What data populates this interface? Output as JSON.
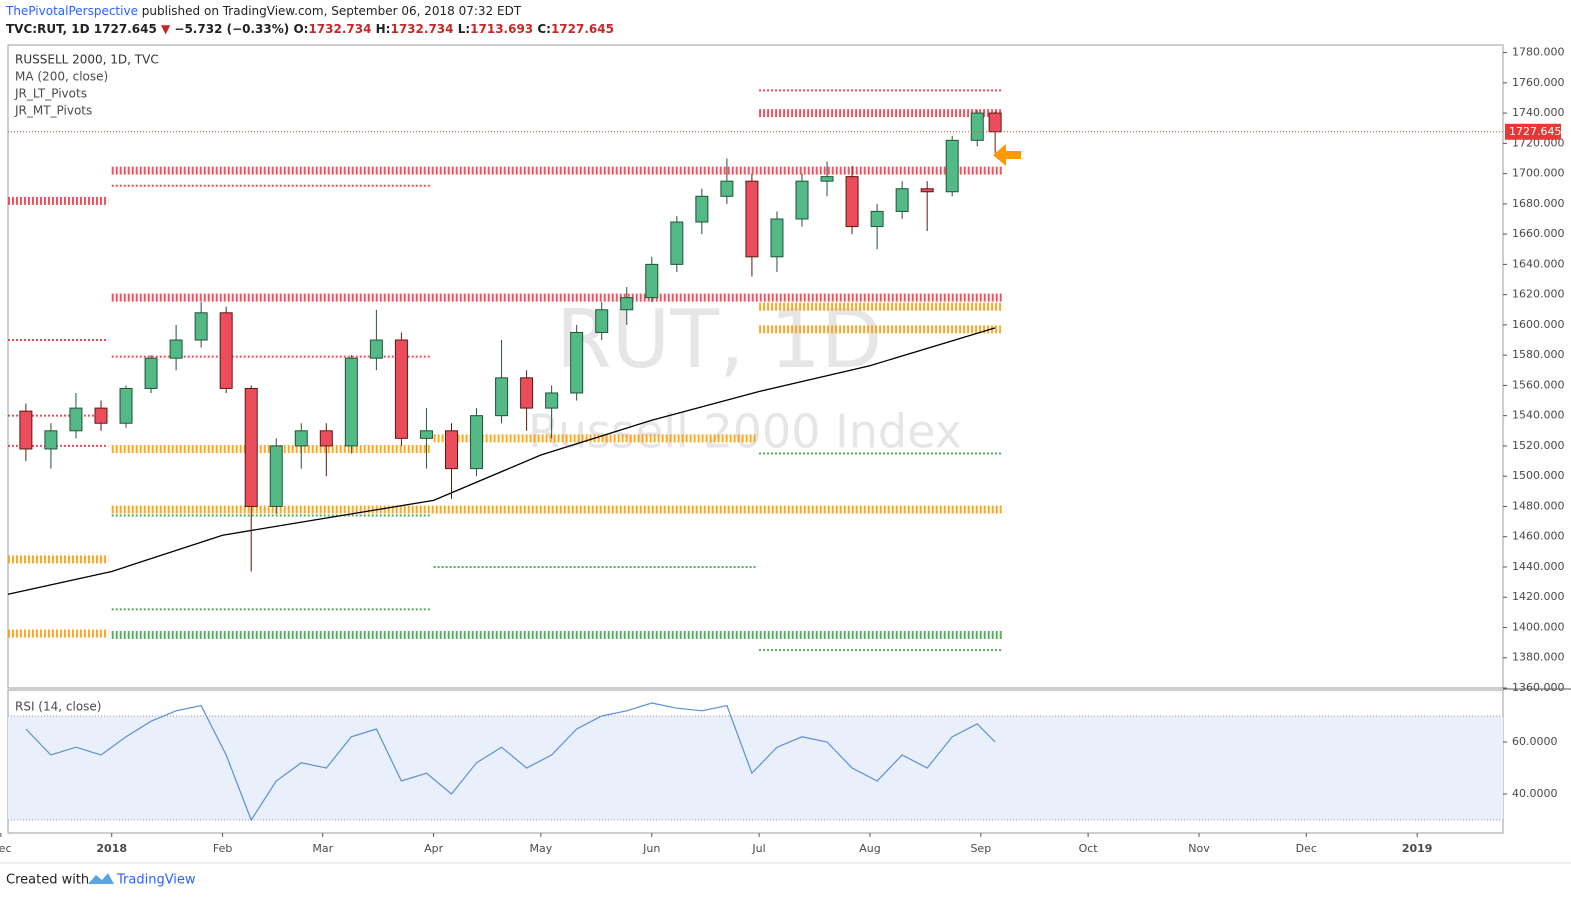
{
  "header": {
    "author": "ThePivotalPerspective",
    "published": "published on TradingView.com, September 06, 2018 07:32 EDT",
    "quote": {
      "symbol": "TVC:RUT, 1D",
      "last": 1727.645,
      "arrow": "▼",
      "change": "−5.732 (−0.33%)",
      "o_label": "O:",
      "open": 1732.734,
      "h_label": "H:",
      "high": 1732.734,
      "l_label": "L:",
      "low": 1713.693,
      "c_label": "C:",
      "close": 1727.645
    }
  },
  "footer": {
    "created": "Created with",
    "brand": "TradingView"
  },
  "chart_data": [
    {
      "type": "candlestick",
      "title": "RUSSELL 2000, 1D, TVC",
      "legend": [
        "MA (200, close)",
        "JR_LT_Pivots",
        "JR_MT_Pivots"
      ],
      "watermark": [
        "RUT, 1D",
        "Russell 2000 Index"
      ],
      "xlim": [
        "2017-12-03",
        "2019-01-25"
      ],
      "xticks": [
        {
          "value": "2017-12-01",
          "label": "Dec"
        },
        {
          "value": "2018-01-01",
          "label": "2018"
        },
        {
          "value": "2018-02-01",
          "label": "Feb"
        },
        {
          "value": "2018-03-01",
          "label": "Mar"
        },
        {
          "value": "2018-04-01",
          "label": "Apr"
        },
        {
          "value": "2018-05-01",
          "label": "May"
        },
        {
          "value": "2018-06-01",
          "label": "Jun"
        },
        {
          "value": "2018-07-01",
          "label": "Jul"
        },
        {
          "value": "2018-08-01",
          "label": "Aug"
        },
        {
          "value": "2018-09-01",
          "label": "Sep"
        },
        {
          "value": "2018-10-01",
          "label": "Oct"
        },
        {
          "value": "2018-11-01",
          "label": "Nov"
        },
        {
          "value": "2018-12-01",
          "label": "Dec"
        },
        {
          "value": "2019-01-01",
          "label": "2019"
        }
      ],
      "ylim": [
        1360,
        1785
      ],
      "yticks": [
        {
          "value": 1360,
          "label": "1360.000"
        },
        {
          "value": 1380,
          "label": "1380.000"
        },
        {
          "value": 1400,
          "label": "1400.000"
        },
        {
          "value": 1420,
          "label": "1420.000"
        },
        {
          "value": 1440,
          "label": "1440.000"
        },
        {
          "value": 1460,
          "label": "1460.000"
        },
        {
          "value": 1480,
          "label": "1480.000"
        },
        {
          "value": 1500,
          "label": "1500.000"
        },
        {
          "value": 1520,
          "label": "1520.000"
        },
        {
          "value": 1540,
          "label": "1540.000"
        },
        {
          "value": 1560,
          "label": "1560.000"
        },
        {
          "value": 1580,
          "label": "1580.000"
        },
        {
          "value": 1600,
          "label": "1600.000"
        },
        {
          "value": 1620,
          "label": "1620.000"
        },
        {
          "value": 1640,
          "label": "1640.000"
        },
        {
          "value": 1660,
          "label": "1660.000"
        },
        {
          "value": 1680,
          "label": "1680.000"
        },
        {
          "value": 1700,
          "label": "1700.000"
        },
        {
          "value": 1720,
          "label": "1720.000"
        },
        {
          "value": 1740,
          "label": "1740.000"
        },
        {
          "value": 1760,
          "label": "1760.000"
        },
        {
          "value": 1780,
          "label": "1780.000"
        }
      ],
      "x": [
        "2017-12-08",
        "2017-12-15",
        "2017-12-22",
        "2017-12-29",
        "2018-01-05",
        "2018-01-12",
        "2018-01-19",
        "2018-01-26",
        "2018-02-02",
        "2018-02-09",
        "2018-02-16",
        "2018-02-23",
        "2018-03-02",
        "2018-03-09",
        "2018-03-16",
        "2018-03-23",
        "2018-03-30",
        "2018-04-06",
        "2018-04-13",
        "2018-04-20",
        "2018-04-27",
        "2018-05-04",
        "2018-05-11",
        "2018-05-18",
        "2018-05-25",
        "2018-06-01",
        "2018-06-08",
        "2018-06-15",
        "2018-06-22",
        "2018-06-29",
        "2018-07-06",
        "2018-07-13",
        "2018-07-20",
        "2018-07-27",
        "2018-08-03",
        "2018-08-10",
        "2018-08-17",
        "2018-08-24",
        "2018-08-31",
        "2018-09-05"
      ],
      "open": [
        1543,
        1518,
        1530,
        1545,
        1535,
        1558,
        1578,
        1590,
        1608,
        1558,
        1480,
        1520,
        1530,
        1520,
        1578,
        1590,
        1525,
        1530,
        1505,
        1540,
        1565,
        1545,
        1555,
        1595,
        1610,
        1618,
        1640,
        1668,
        1685,
        1695,
        1645,
        1670,
        1695,
        1698,
        1665,
        1675,
        1690,
        1688,
        1722,
        1740
      ],
      "high": [
        1548,
        1535,
        1555,
        1550,
        1560,
        1580,
        1600,
        1615,
        1612,
        1560,
        1525,
        1535,
        1535,
        1580,
        1610,
        1595,
        1545,
        1535,
        1545,
        1590,
        1570,
        1560,
        1600,
        1615,
        1625,
        1645,
        1672,
        1690,
        1710,
        1700,
        1675,
        1700,
        1708,
        1705,
        1680,
        1695,
        1695,
        1725,
        1742,
        1741
      ],
      "low": [
        1510,
        1505,
        1525,
        1530,
        1532,
        1555,
        1570,
        1585,
        1555,
        1437,
        1475,
        1505,
        1500,
        1515,
        1570,
        1520,
        1505,
        1485,
        1500,
        1535,
        1530,
        1525,
        1550,
        1590,
        1600,
        1615,
        1635,
        1660,
        1680,
        1632,
        1635,
        1665,
        1685,
        1660,
        1650,
        1670,
        1662,
        1685,
        1718,
        1713.693
      ],
      "close": [
        1518,
        1530,
        1545,
        1535,
        1558,
        1578,
        1590,
        1608,
        1558,
        1480,
        1520,
        1530,
        1520,
        1578,
        1590,
        1525,
        1530,
        1505,
        1540,
        1565,
        1545,
        1555,
        1595,
        1610,
        1618,
        1640,
        1668,
        1685,
        1695,
        1645,
        1670,
        1695,
        1698,
        1665,
        1675,
        1690,
        1688,
        1722,
        1740,
        1727.645
      ],
      "last_price": 1727.645,
      "ma": {
        "x": [
          "2017-12-03",
          "2018-01-01",
          "2018-02-01",
          "2018-03-01",
          "2018-04-01",
          "2018-05-01",
          "2018-06-01",
          "2018-07-01",
          "2018-08-01",
          "2018-09-05"
        ],
        "values": [
          1422,
          1437,
          1461,
          1472,
          1484,
          1514,
          1537,
          1556,
          1573,
          1598
        ],
        "color": "#000000"
      },
      "pivots": [
        {
          "value": 1755,
          "from": "2018-07-01",
          "to": "2018-09-07",
          "color": "#f23645",
          "style": "thin"
        },
        {
          "value": 1740,
          "from": "2018-07-01",
          "to": "2018-09-07",
          "color": "#f23645",
          "style": "thick"
        },
        {
          "value": 1702,
          "from": "2018-01-01",
          "to": "2018-09-07",
          "color": "#f23645",
          "style": "thick"
        },
        {
          "value": 1692,
          "from": "2018-01-01",
          "to": "2018-03-31",
          "color": "#f23645",
          "style": "thin"
        },
        {
          "value": 1682,
          "from": "2017-12-03",
          "to": "2017-12-31",
          "color": "#f23645",
          "style": "thick"
        },
        {
          "value": 1618,
          "from": "2018-01-01",
          "to": "2018-09-07",
          "color": "#f23645",
          "style": "thick"
        },
        {
          "value": 1612,
          "from": "2018-07-01",
          "to": "2018-09-07",
          "color": "#ff9800",
          "style": "thick"
        },
        {
          "value": 1597,
          "from": "2018-07-01",
          "to": "2018-09-07",
          "color": "#ff9800",
          "style": "thick"
        },
        {
          "value": 1590,
          "from": "2017-12-03",
          "to": "2017-12-31",
          "color": "#f23645",
          "style": "thin"
        },
        {
          "value": 1579,
          "from": "2018-01-01",
          "to": "2018-03-31",
          "color": "#f23645",
          "style": "thin"
        },
        {
          "value": 1540,
          "from": "2017-12-03",
          "to": "2017-12-31",
          "color": "#f23645",
          "style": "thin"
        },
        {
          "value": 1525,
          "from": "2018-04-01",
          "to": "2018-06-30",
          "color": "#ff9800",
          "style": "thick"
        },
        {
          "value": 1520,
          "from": "2017-12-03",
          "to": "2017-12-31",
          "color": "#f23645",
          "style": "thin"
        },
        {
          "value": 1518,
          "from": "2018-01-01",
          "to": "2018-03-31",
          "color": "#ff9800",
          "style": "thick"
        },
        {
          "value": 1515,
          "from": "2018-07-01",
          "to": "2018-09-07",
          "color": "#43a047",
          "style": "thin"
        },
        {
          "value": 1478,
          "from": "2018-01-01",
          "to": "2018-09-07",
          "color": "#ff9800",
          "style": "thick"
        },
        {
          "value": 1474,
          "from": "2018-01-01",
          "to": "2018-03-31",
          "color": "#43a047",
          "style": "thin"
        },
        {
          "value": 1445,
          "from": "2017-12-03",
          "to": "2017-12-31",
          "color": "#ff9800",
          "style": "thick"
        },
        {
          "value": 1440,
          "from": "2018-04-01",
          "to": "2018-06-30",
          "color": "#43a047",
          "style": "thin"
        },
        {
          "value": 1412,
          "from": "2018-01-01",
          "to": "2018-03-31",
          "color": "#43a047",
          "style": "thin"
        },
        {
          "value": 1396,
          "from": "2017-12-03",
          "to": "2017-12-31",
          "color": "#ff9800",
          "style": "thick"
        },
        {
          "value": 1395,
          "from": "2018-01-01",
          "to": "2018-09-07",
          "color": "#43a047",
          "style": "thick"
        },
        {
          "value": 1385,
          "from": "2018-07-01",
          "to": "2018-09-07",
          "color": "#43a047",
          "style": "thin"
        }
      ]
    },
    {
      "type": "line",
      "title": "RSI (14, close)",
      "ylim": [
        25,
        80
      ],
      "yticks": [
        {
          "value": 40,
          "label": "40.0000"
        },
        {
          "value": 60,
          "label": "60.0000"
        }
      ],
      "bands": [
        30,
        70
      ],
      "color": "#5b8fd6",
      "values": [
        65,
        55,
        58,
        55,
        62,
        68,
        72,
        74,
        55,
        30,
        45,
        52,
        50,
        62,
        65,
        45,
        48,
        40,
        52,
        58,
        50,
        55,
        65,
        70,
        72,
        75,
        73,
        72,
        74,
        48,
        58,
        62,
        60,
        50,
        45,
        55,
        50,
        62,
        67,
        60
      ]
    }
  ]
}
